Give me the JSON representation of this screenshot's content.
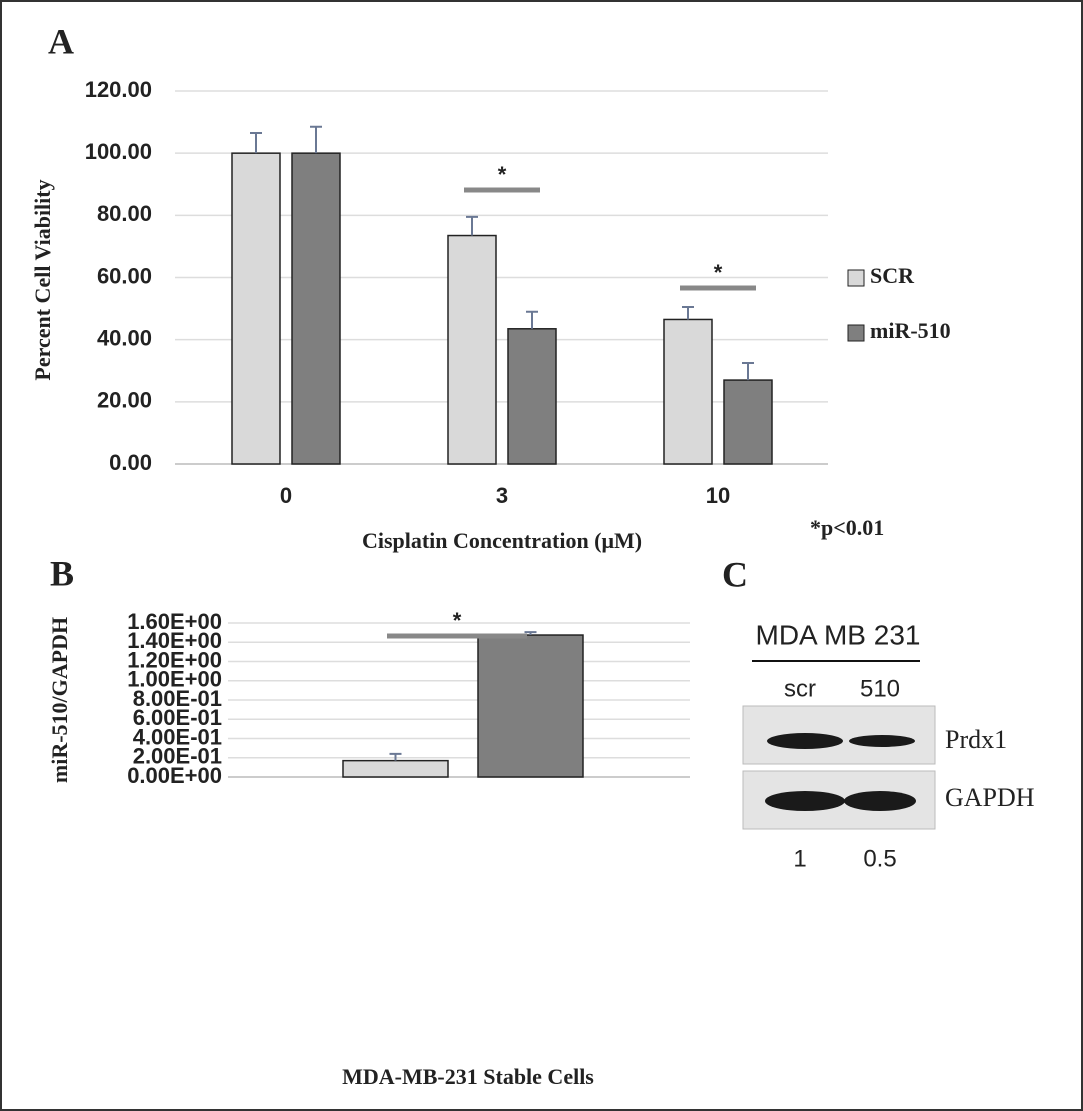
{
  "chart_data": [
    {
      "type": "bar",
      "panel": "A",
      "x_label": "Cisplatin Concentration (μM)",
      "y_label": "Percent Cell Viability",
      "categories": [
        "0",
        "3",
        "10"
      ],
      "series": [
        {
          "name": "SCR",
          "color": "#d9d9d9",
          "values": [
            100,
            73.5,
            46.5
          ],
          "errors": [
            6.5,
            6,
            4
          ]
        },
        {
          "name": "miR-510",
          "color": "#7f7f7f",
          "values": [
            100,
            43.5,
            27
          ],
          "errors": [
            8.5,
            5.5,
            5.5
          ]
        }
      ],
      "ylim": [
        0,
        120
      ],
      "yticks": [
        {
          "value": 0,
          "label": "0.00"
        },
        {
          "value": 20,
          "label": "20.00"
        },
        {
          "value": 40,
          "label": "40.00"
        },
        {
          "value": 60,
          "label": "60.00"
        },
        {
          "value": 80,
          "label": "80.00"
        },
        {
          "value": 100,
          "label": "100.00"
        },
        {
          "value": 120,
          "label": "120.00"
        }
      ],
      "grid": true,
      "legend": "right",
      "annotations": [
        "*",
        "*"
      ],
      "note": "*p<0.01"
    },
    {
      "type": "bar",
      "panel": "B",
      "x_label": "MDA-MB-231 Stable Cells",
      "y_label": "miR-510/GAPDH",
      "categories": [
        null,
        null
      ],
      "values": [
        0.17,
        1.475
      ],
      "errors": [
        0.07,
        0.03
      ],
      "colors": [
        "#d9d9d9",
        "#7f7f7f"
      ],
      "ylim": [
        0,
        1.6
      ],
      "yticks": [
        {
          "value": 0,
          "label": "0.00E+00"
        },
        {
          "value": 0.2,
          "label": "2.00E-01"
        },
        {
          "value": 0.4,
          "label": "4.00E-01"
        },
        {
          "value": 0.6,
          "label": "6.00E-01"
        },
        {
          "value": 0.8,
          "label": "8.00E-01"
        },
        {
          "value": 1.0,
          "label": "1.00E+00"
        },
        {
          "value": 1.2,
          "label": "1.20E+00"
        },
        {
          "value": 1.4,
          "label": "1.40E+00"
        },
        {
          "value": 1.6,
          "label": "1.60E+00"
        }
      ],
      "grid": true,
      "annotations": [
        "*"
      ]
    }
  ],
  "blot": {
    "panel": "C",
    "title": "MDA MB 231",
    "lanes": [
      "scr",
      "510"
    ],
    "rows": [
      "Prdx1",
      "GAPDH"
    ],
    "quantification": [
      1,
      0.5
    ]
  }
}
